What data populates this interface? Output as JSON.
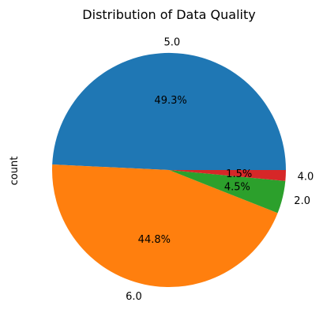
{
  "chart_data": {
    "type": "pie",
    "title": "Distribution of Data Quality",
    "ylabel": "count",
    "slices": [
      {
        "label": "5.0",
        "percent": "49.3%",
        "value": 49.3,
        "color": "#1f77b4"
      },
      {
        "label": "6.0",
        "percent": "44.8%",
        "value": 44.8,
        "color": "#ff7f0e"
      },
      {
        "label": "2.0",
        "percent": "4.5%",
        "value": 4.5,
        "color": "#2ca02c"
      },
      {
        "label": "4.0",
        "percent": "1.5%",
        "value": 1.5,
        "color": "#d62728"
      }
    ],
    "start_angle_deg": 0,
    "direction": "counterclockwise"
  }
}
